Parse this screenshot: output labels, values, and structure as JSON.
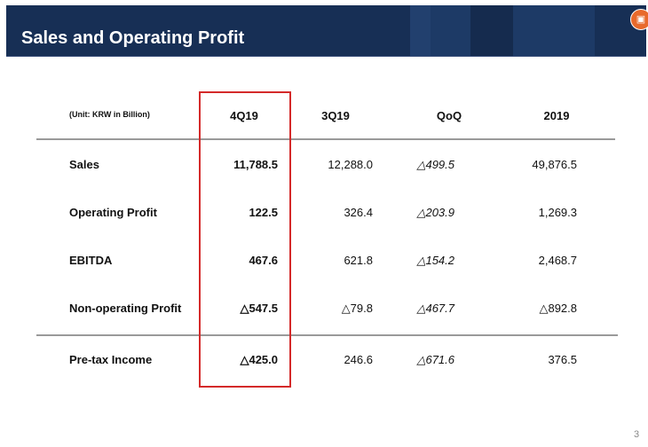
{
  "header": {
    "title": "Sales and Operating Profit"
  },
  "table": {
    "unit": "(Unit: KRW in Billion)",
    "columns": [
      "4Q19",
      "3Q19",
      "QoQ",
      "2019"
    ],
    "rows": [
      {
        "label": "Sales",
        "values": [
          "11,788.5",
          "12,288.0",
          "△499.5",
          "49,876.5"
        ]
      },
      {
        "label": "Operating Profit",
        "values": [
          "122.5",
          "326.4",
          "△203.9",
          "1,269.3"
        ]
      },
      {
        "label": "EBITDA",
        "values": [
          "467.6",
          "621.8",
          "△154.2",
          "2,468.7"
        ]
      },
      {
        "label": "Non-operating Profit",
        "values": [
          "△547.5",
          "△79.8",
          "△467.7",
          "△892.8"
        ]
      },
      {
        "label": "Pre-tax Income",
        "values": [
          "△425.0",
          "246.6",
          "△671.6",
          "376.5"
        ]
      }
    ]
  },
  "page_number": "3",
  "colors": {
    "header_bg": "#172f55",
    "highlight": "#d42a2a"
  }
}
